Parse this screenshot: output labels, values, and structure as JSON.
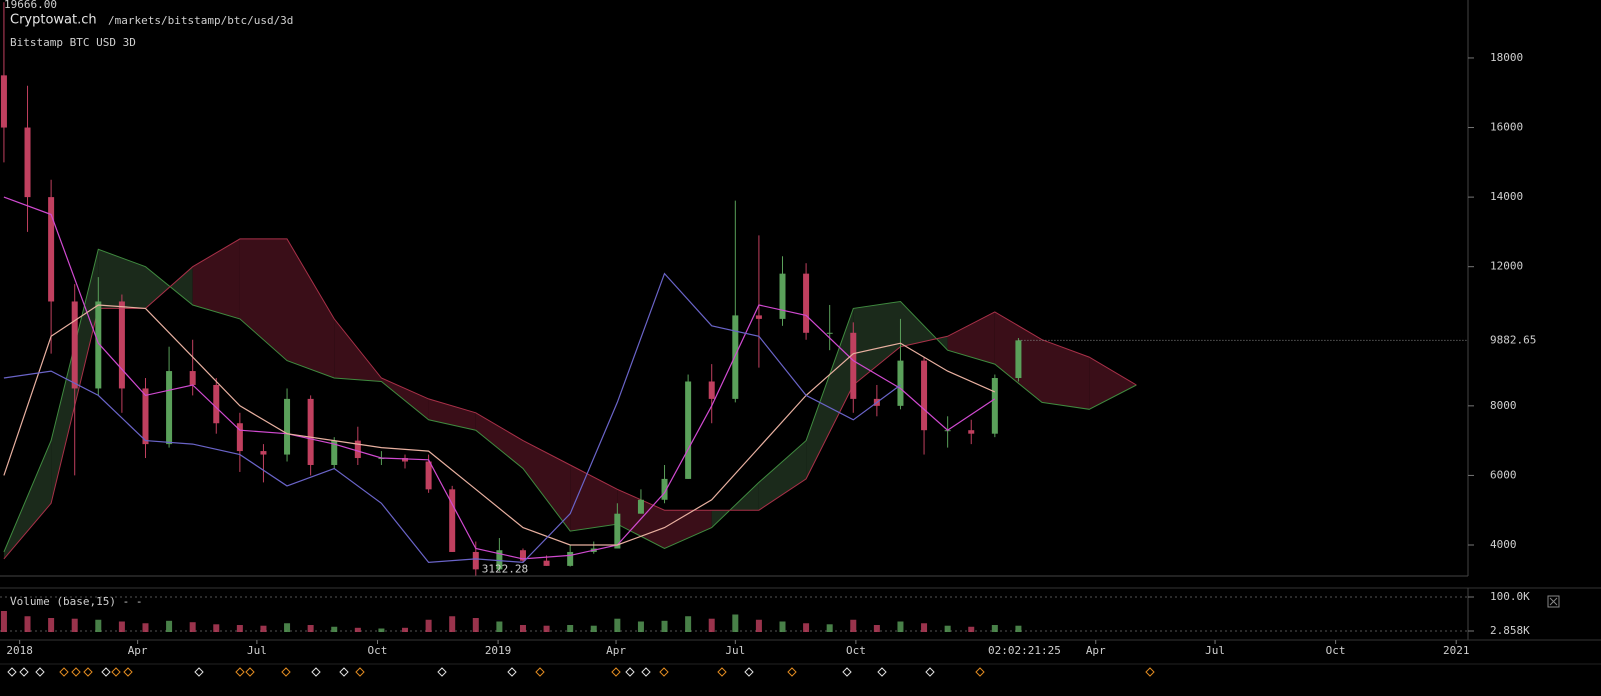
{
  "chart_data": {
    "type": "candlestick",
    "top_label": "19666.00",
    "site": "Cryptowat.ch",
    "path": "/markets/bitstamp/btc/usd/3d",
    "title": "Bitstamp BTC USD 3D",
    "volume_title": "Volume (base,15) - -",
    "countdown": "02:02:21:25",
    "up_color": "#5aa05a",
    "down_color": "#c0405f",
    "xlim": [
      -15,
      1105
    ],
    "xticks": [
      {
        "value": 0,
        "label": "2018"
      },
      {
        "value": 90,
        "label": "Apr"
      },
      {
        "value": 181,
        "label": "Jul"
      },
      {
        "value": 273,
        "label": "Oct"
      },
      {
        "value": 365,
        "label": "2019"
      },
      {
        "value": 455,
        "label": "Apr"
      },
      {
        "value": 546,
        "label": "Jul"
      },
      {
        "value": 638,
        "label": "Oct"
      },
      {
        "value": 821,
        "label": "Apr"
      },
      {
        "value": 912,
        "label": "Jul"
      },
      {
        "value": 1004,
        "label": "Oct"
      },
      {
        "value": 1096,
        "label": "2021"
      }
    ],
    "ylim": [
      3109,
      19666
    ],
    "yticks": [
      4000,
      6000,
      8000,
      12000,
      14000,
      16000,
      18000
    ],
    "x": [
      -12,
      6,
      24,
      42,
      60,
      78,
      96,
      114,
      132,
      150,
      168,
      186,
      204,
      222,
      240,
      258,
      276,
      294,
      312,
      330,
      348,
      366,
      384,
      402,
      420,
      438,
      456,
      474,
      492,
      510,
      528,
      546,
      564,
      582,
      600,
      618,
      636,
      654,
      672,
      690,
      708,
      726,
      744,
      762
    ],
    "open": [
      17500,
      16000,
      14000,
      11000,
      8500,
      11000,
      8500,
      6900,
      9000,
      8600,
      7500,
      6700,
      6600,
      8200,
      6300,
      7000,
      6500,
      6500,
      6400,
      5600,
      3800,
      3300,
      3850,
      3550,
      3400,
      3800,
      3900,
      4900,
      5300,
      5900,
      8700,
      8200,
      10600,
      10500,
      11800,
      10100,
      10100,
      8200,
      8000,
      9300,
      7300,
      7300,
      7200,
      8800
    ],
    "high": [
      19600,
      17200,
      14500,
      11500,
      11700,
      11200,
      8800,
      9700,
      9900,
      8800,
      7800,
      6900,
      8500,
      8300,
      7100,
      7400,
      6700,
      6600,
      6600,
      5700,
      4100,
      4200,
      3900,
      3700,
      4000,
      4100,
      5200,
      5600,
      6300,
      8900,
      9200,
      13900,
      12900,
      12300,
      12100,
      10900,
      10400,
      8600,
      10500,
      9400,
      7700,
      7600,
      8900,
      9950
    ],
    "low": [
      15000,
      13000,
      9500,
      6000,
      8300,
      7800,
      6500,
      6800,
      8300,
      7200,
      6100,
      5800,
      6400,
      6000,
      6200,
      6300,
      6300,
      6200,
      5500,
      3800,
      3122.28,
      3250,
      3500,
      3400,
      3380,
      3750,
      3900,
      4900,
      5200,
      5900,
      7500,
      8100,
      9100,
      10300,
      9900,
      9600,
      7800,
      7700,
      7900,
      6600,
      6800,
      6900,
      7100,
      8700
    ],
    "close": [
      16000,
      14000,
      11000,
      8500,
      11000,
      8500,
      6900,
      9000,
      8600,
      7500,
      6700,
      6600,
      8200,
      6300,
      7000,
      6500,
      6500,
      6400,
      5600,
      3800,
      3300,
      3850,
      3550,
      3400,
      3800,
      3900,
      4900,
      5300,
      5900,
      8700,
      8200,
      10600,
      10500,
      11800,
      10100,
      10100,
      8200,
      8000,
      9300,
      7300,
      7300,
      7200,
      8800,
      9882.65
    ],
    "volume": [
      60000,
      45000,
      40000,
      38000,
      35000,
      30000,
      25000,
      32000,
      28000,
      22000,
      20000,
      18000,
      25000,
      20000,
      15000,
      12000,
      10000,
      12000,
      35000,
      45000,
      40000,
      30000,
      20000,
      18000,
      20000,
      18000,
      38000,
      30000,
      32000,
      45000,
      38000,
      50000,
      35000,
      30000,
      25000,
      22000,
      35000,
      20000,
      30000,
      25000,
      18000,
      15000,
      20000,
      18000
    ],
    "vol_ylim": [
      -11400,
      125700
    ],
    "vol_yticks": [
      {
        "value": 100000,
        "label": "100.0K"
      },
      {
        "value": 2858,
        "label": "2.858K"
      }
    ],
    "line_x": [
      -12,
      24,
      60,
      96,
      132,
      168,
      204,
      240,
      276,
      312,
      348,
      384,
      420,
      456,
      492,
      528,
      564,
      600,
      636,
      672,
      708,
      744
    ],
    "lines": [
      {
        "color": "#d04ad0",
        "values": [
          14000,
          13500,
          9800,
          8300,
          8600,
          7300,
          7200,
          6900,
          6500,
          6450,
          3900,
          3600,
          3700,
          4000,
          5500,
          8000,
          10900,
          10600,
          9300,
          8500,
          7300,
          8200
        ]
      },
      {
        "color": "#e8b0a0",
        "values": [
          6000,
          10000,
          10900,
          10800,
          9400,
          8000,
          7200,
          7000,
          6800,
          6700,
          5600,
          4500,
          4000,
          4000,
          4500,
          5300,
          6800,
          8300,
          9500,
          9800,
          9000,
          8400
        ]
      },
      {
        "color": "#6a64c8",
        "values": [
          8800,
          9000,
          8300,
          7000,
          6900,
          6600,
          5700,
          6200,
          5200,
          3500,
          3600,
          3500,
          4900,
          8100,
          11800,
          10300,
          10000,
          8300,
          7600,
          8600,
          null,
          null
        ]
      }
    ],
    "cloud": {
      "x": [
        -12,
        24,
        60,
        96,
        132,
        168,
        204,
        240,
        276,
        312,
        348,
        384,
        420,
        456,
        492,
        528,
        564,
        600,
        636,
        672,
        708,
        744,
        780,
        816,
        852
      ],
      "span_a": [
        3800,
        7000,
        12500,
        12000,
        10900,
        10500,
        9300,
        8800,
        8700,
        7600,
        7300,
        6200,
        4400,
        4600,
        3900,
        4500,
        5800,
        7000,
        10800,
        11000,
        9600,
        9200,
        8100,
        7900,
        8600
      ],
      "span_b": [
        3600,
        5200,
        10800,
        10800,
        12000,
        12800,
        12800,
        10500,
        8800,
        8200,
        7800,
        7000,
        6300,
        5600,
        5000,
        5000,
        5000,
        5900,
        8600,
        9700,
        10000,
        10700,
        9900,
        9400,
        8600
      ],
      "up_fill": "#1b2a1b",
      "down_fill": "#3a0e18",
      "span_a_color": "#3f8a3f",
      "span_b_color": "#a83048"
    }
  }
}
